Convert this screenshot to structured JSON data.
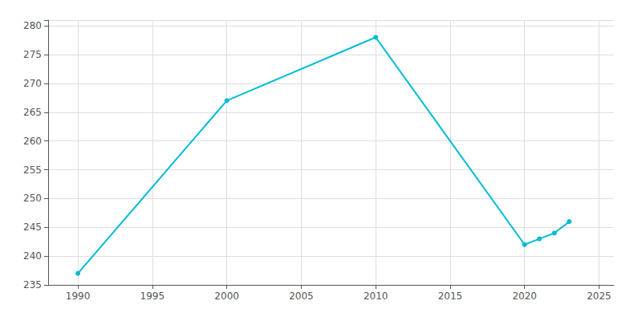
{
  "chart_data": {
    "type": "line",
    "x": [
      1990,
      2000,
      2010,
      2020,
      2021,
      2022,
      2023
    ],
    "values": [
      237,
      267,
      278,
      242,
      243,
      244,
      246
    ],
    "color": "#00bcd4",
    "marker": "circle",
    "xlim": [
      1988,
      2026
    ],
    "ylim": [
      235,
      281
    ],
    "xticks": [
      1990,
      1995,
      2000,
      2005,
      2010,
      2015,
      2020,
      2025
    ],
    "yticks": [
      235,
      240,
      245,
      250,
      255,
      260,
      265,
      270,
      275,
      280
    ],
    "grid": true
  }
}
